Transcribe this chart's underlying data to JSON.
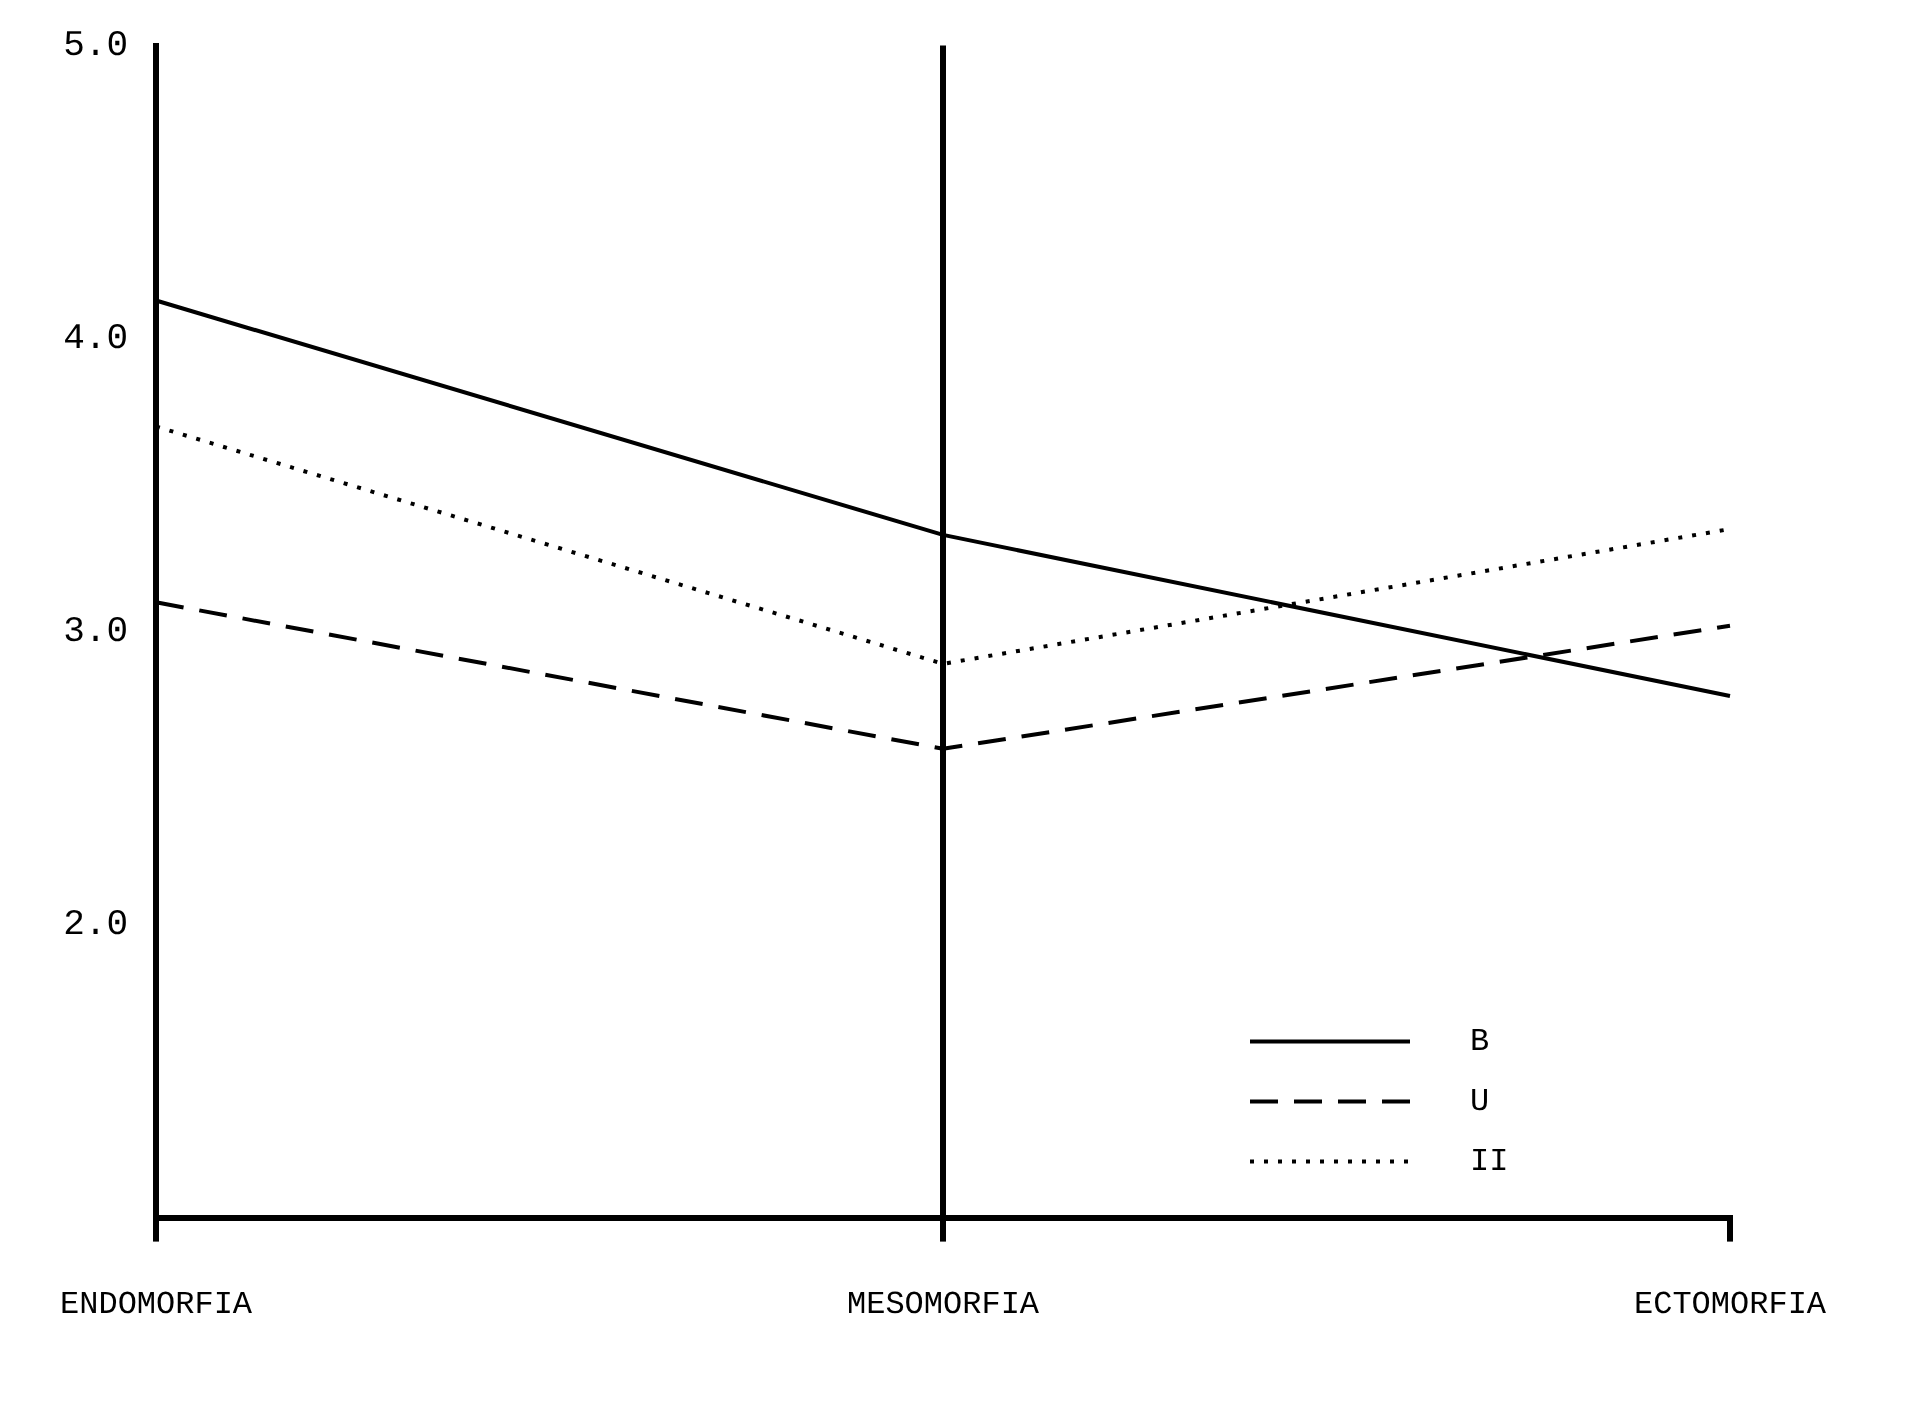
{
  "chart_data": {
    "type": "line",
    "categories": [
      "ENDOMORFIA",
      "MESOMORFIA",
      "ECTOMORFIA"
    ],
    "series": [
      {
        "name": "B",
        "color": "#000000",
        "values": [
          4.13,
          3.33,
          2.78
        ],
        "line_style": "solid"
      },
      {
        "name": "U",
        "color": "#000000",
        "values": [
          3.1,
          2.6,
          3.02
        ],
        "line_style": "dashed"
      },
      {
        "name": "II",
        "color": "#000000",
        "values": [
          3.7,
          2.89,
          3.35
        ],
        "line_style": "dotted"
      }
    ],
    "ylim": [
      1,
      5
    ],
    "yticks": [
      {
        "value": 2,
        "label": "2.0"
      },
      {
        "value": 3,
        "label": "3.0"
      },
      {
        "value": 4,
        "label": "4.0"
      },
      {
        "value": 5,
        "label": "5.0"
      }
    ],
    "grid": "x",
    "legend": "bottom right",
    "marker": "none"
  }
}
